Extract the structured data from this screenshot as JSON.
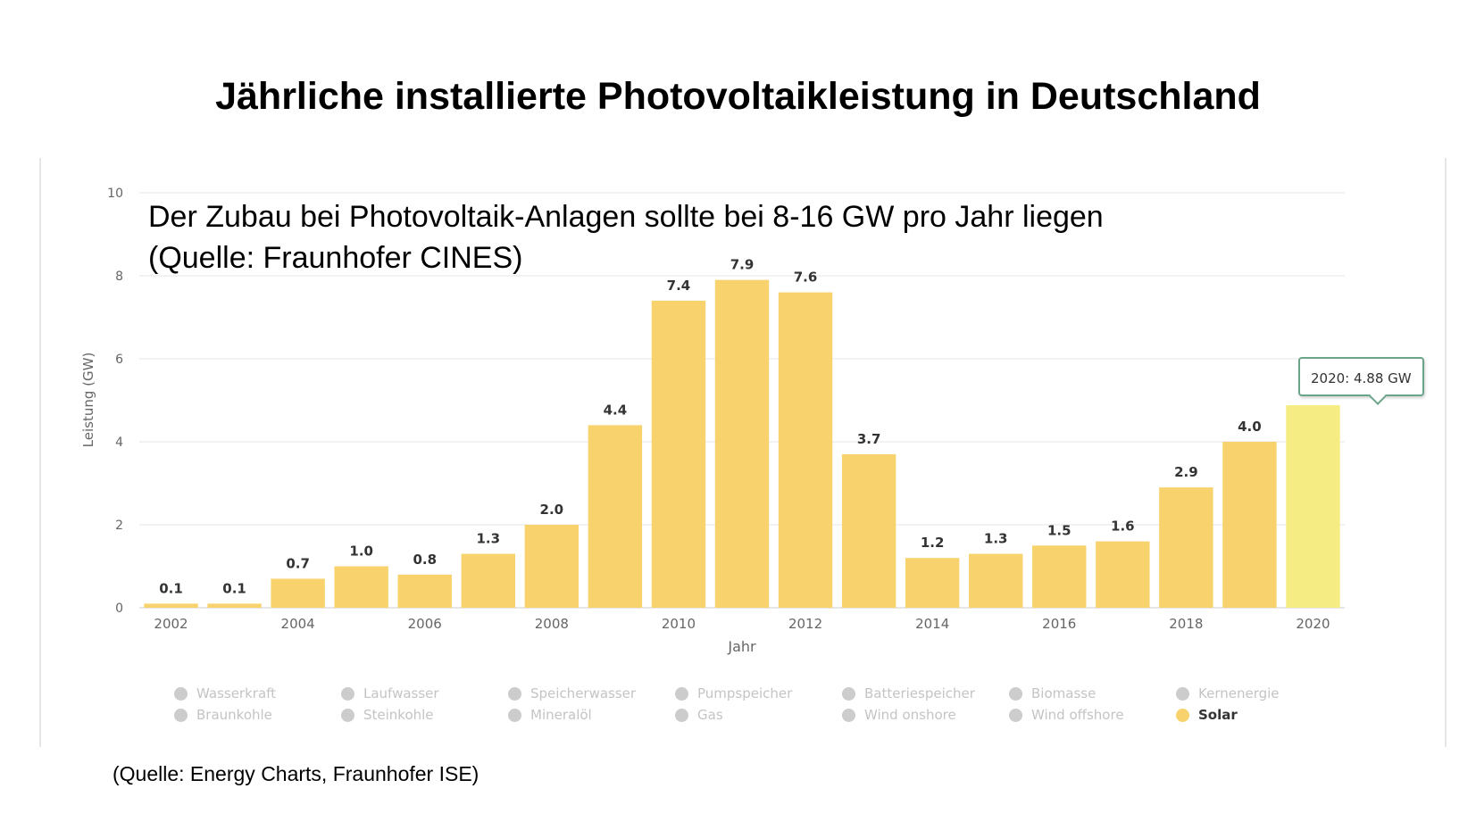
{
  "slide": {
    "title": "Jährliche installierte Photovoltaikleistung in Deutschland",
    "annotation_line1": "Der Zubau bei Photovoltaik-Anlagen sollte bei 8-16 GW pro Jahr liegen",
    "annotation_line2": "(Quelle: Fraunhofer CINES)",
    "source": "(Quelle: Energy Charts, Fraunhofer ISE)"
  },
  "tooltip": {
    "text": "2020: 4.88 GW"
  },
  "legend": {
    "items": [
      {
        "label": "Wasserkraft",
        "active": false
      },
      {
        "label": "Laufwasser",
        "active": false
      },
      {
        "label": "Speicherwasser",
        "active": false
      },
      {
        "label": "Pumpspeicher",
        "active": false
      },
      {
        "label": "Batteriespeicher",
        "active": false
      },
      {
        "label": "Biomasse",
        "active": false
      },
      {
        "label": "Kernenergie",
        "active": false
      },
      {
        "label": "Braunkohle",
        "active": false
      },
      {
        "label": "Steinkohle",
        "active": false
      },
      {
        "label": "Mineralöl",
        "active": false
      },
      {
        "label": "Gas",
        "active": false
      },
      {
        "label": "Wind onshore",
        "active": false
      },
      {
        "label": "Wind offshore",
        "active": false
      },
      {
        "label": "Solar",
        "active": true
      }
    ]
  },
  "colors": {
    "bar": "#f7d26d",
    "bar_highlight": "#f5ec83",
    "gridline": "#e6e6e6",
    "axis_text": "#666666",
    "data_label": "#333333"
  },
  "chart_data": {
    "type": "bar",
    "categories": [
      "2002",
      "2003",
      "2004",
      "2005",
      "2006",
      "2007",
      "2008",
      "2009",
      "2010",
      "2011",
      "2012",
      "2013",
      "2014",
      "2015",
      "2016",
      "2017",
      "2018",
      "2019",
      "2020"
    ],
    "values": [
      0.1,
      0.1,
      0.7,
      1.0,
      0.8,
      1.3,
      2.0,
      4.4,
      7.4,
      7.9,
      7.6,
      3.7,
      1.2,
      1.3,
      1.5,
      1.6,
      2.9,
      4.0,
      4.88
    ],
    "data_labels": [
      "0.1",
      "0.1",
      "0.7",
      "1.0",
      "0.8",
      "1.3",
      "2.0",
      "4.4",
      "7.4",
      "7.9",
      "7.6",
      "3.7",
      "1.2",
      "1.3",
      "1.5",
      "1.6",
      "2.9",
      "4.0",
      ""
    ],
    "highlighted_category": "2020",
    "x_tick_labels": [
      "2002",
      "2004",
      "2006",
      "2008",
      "2010",
      "2012",
      "2014",
      "2016",
      "2018",
      "2020"
    ],
    "y_ticks": [
      "0",
      "2",
      "4",
      "6",
      "8",
      "10"
    ],
    "xlabel": "Jahr",
    "ylabel": "Leistung (GW)",
    "ylim": [
      0,
      10
    ],
    "grid": true,
    "legend_position": "bottom"
  }
}
